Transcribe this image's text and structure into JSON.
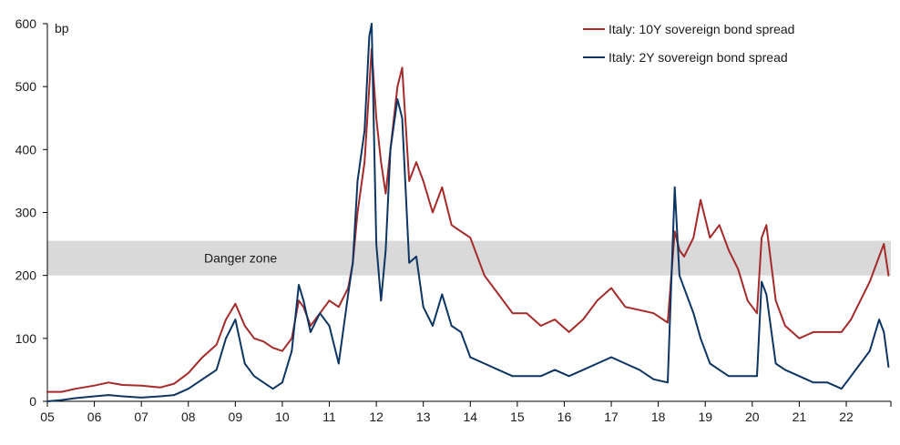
{
  "chart_data": {
    "type": "line",
    "title": "",
    "unit_label": "bp",
    "xlabel": "",
    "ylabel": "",
    "xlim": [
      2005.0,
      2022.95
    ],
    "ylim": [
      0,
      600
    ],
    "y_ticks": [
      0,
      100,
      200,
      300,
      400,
      500,
      600
    ],
    "x_ticks": [
      {
        "value": 2005,
        "label": "05"
      },
      {
        "value": 2006,
        "label": "06"
      },
      {
        "value": 2007,
        "label": "07"
      },
      {
        "value": 2008,
        "label": "08"
      },
      {
        "value": 2009,
        "label": "09"
      },
      {
        "value": 2010,
        "label": "10"
      },
      {
        "value": 2011,
        "label": "11"
      },
      {
        "value": 2012,
        "label": "12"
      },
      {
        "value": 2013,
        "label": "13"
      },
      {
        "value": 2014,
        "label": "14"
      },
      {
        "value": 2015,
        "label": "15"
      },
      {
        "value": 2016,
        "label": "16"
      },
      {
        "value": 2017,
        "label": "17"
      },
      {
        "value": 2018,
        "label": "18"
      },
      {
        "value": 2019,
        "label": "19"
      },
      {
        "value": 2020,
        "label": "20"
      },
      {
        "value": 2021,
        "label": "21"
      },
      {
        "value": 2022,
        "label": "22"
      }
    ],
    "grid": false,
    "legend_position": "top-right",
    "band": {
      "y0": 200,
      "y1": 255,
      "label": "Danger zone",
      "color": "#d9d9d9"
    },
    "series": [
      {
        "name": "Italy: 10Y sovereign bond spread",
        "color": "#a52a2a",
        "x": [
          2005.0,
          2005.3,
          2005.6,
          2006.0,
          2006.3,
          2006.6,
          2007.0,
          2007.4,
          2007.7,
          2008.0,
          2008.3,
          2008.6,
          2008.8,
          2009.0,
          2009.2,
          2009.4,
          2009.6,
          2009.8,
          2010.0,
          2010.2,
          2010.35,
          2010.45,
          2010.6,
          2010.8,
          2011.0,
          2011.2,
          2011.4,
          2011.5,
          2011.6,
          2011.75,
          2011.85,
          2011.9,
          2012.0,
          2012.1,
          2012.2,
          2012.3,
          2012.45,
          2012.55,
          2012.7,
          2012.85,
          2013.0,
          2013.2,
          2013.4,
          2013.6,
          2013.8,
          2014.0,
          2014.3,
          2014.6,
          2014.9,
          2015.2,
          2015.5,
          2015.8,
          2016.1,
          2016.4,
          2016.7,
          2017.0,
          2017.3,
          2017.6,
          2017.9,
          2018.2,
          2018.35,
          2018.45,
          2018.55,
          2018.75,
          2018.9,
          2019.1,
          2019.3,
          2019.5,
          2019.7,
          2019.9,
          2020.1,
          2020.2,
          2020.3,
          2020.5,
          2020.7,
          2021.0,
          2021.3,
          2021.6,
          2021.9,
          2022.1,
          2022.3,
          2022.5,
          2022.7,
          2022.8,
          2022.9
        ],
        "values": [
          15,
          15,
          20,
          25,
          30,
          26,
          25,
          22,
          28,
          45,
          70,
          90,
          130,
          155,
          120,
          100,
          95,
          85,
          80,
          100,
          160,
          150,
          120,
          140,
          160,
          150,
          180,
          220,
          300,
          380,
          500,
          560,
          450,
          380,
          330,
          400,
          500,
          530,
          350,
          380,
          350,
          300,
          340,
          280,
          270,
          260,
          200,
          170,
          140,
          140,
          120,
          130,
          110,
          130,
          160,
          180,
          150,
          145,
          140,
          125,
          270,
          240,
          230,
          260,
          320,
          260,
          280,
          240,
          210,
          160,
          140,
          260,
          280,
          160,
          120,
          100,
          110,
          110,
          110,
          130,
          160,
          190,
          230,
          250,
          200
        ]
      },
      {
        "name": "Italy: 2Y sovereign bond spread",
        "color": "#0d3563",
        "x": [
          2005.0,
          2005.3,
          2005.6,
          2006.0,
          2006.3,
          2006.6,
          2007.0,
          2007.4,
          2007.7,
          2008.0,
          2008.3,
          2008.6,
          2008.8,
          2009.0,
          2009.2,
          2009.4,
          2009.6,
          2009.8,
          2010.0,
          2010.2,
          2010.35,
          2010.45,
          2010.6,
          2010.8,
          2011.0,
          2011.2,
          2011.4,
          2011.5,
          2011.6,
          2011.75,
          2011.85,
          2011.9,
          2012.0,
          2012.1,
          2012.2,
          2012.3,
          2012.45,
          2012.55,
          2012.7,
          2012.85,
          2013.0,
          2013.2,
          2013.4,
          2013.6,
          2013.8,
          2014.0,
          2014.3,
          2014.6,
          2014.9,
          2015.2,
          2015.5,
          2015.8,
          2016.1,
          2016.4,
          2016.7,
          2017.0,
          2017.3,
          2017.6,
          2017.9,
          2018.2,
          2018.35,
          2018.45,
          2018.55,
          2018.75,
          2018.9,
          2019.1,
          2019.3,
          2019.5,
          2019.7,
          2019.9,
          2020.1,
          2020.2,
          2020.3,
          2020.5,
          2020.7,
          2021.0,
          2021.3,
          2021.6,
          2021.9,
          2022.1,
          2022.3,
          2022.5,
          2022.7,
          2022.8,
          2022.9
        ],
        "values": [
          0,
          2,
          5,
          8,
          10,
          8,
          6,
          8,
          10,
          20,
          35,
          50,
          100,
          130,
          60,
          40,
          30,
          20,
          30,
          80,
          185,
          160,
          110,
          140,
          120,
          60,
          170,
          220,
          350,
          430,
          580,
          600,
          250,
          160,
          240,
          400,
          480,
          450,
          220,
          230,
          150,
          120,
          170,
          120,
          110,
          70,
          60,
          50,
          40,
          40,
          40,
          50,
          40,
          50,
          60,
          70,
          60,
          50,
          35,
          30,
          340,
          200,
          180,
          140,
          100,
          60,
          50,
          40,
          40,
          40,
          40,
          190,
          170,
          60,
          50,
          40,
          30,
          30,
          20,
          40,
          60,
          80,
          130,
          110,
          55
        ]
      }
    ]
  }
}
